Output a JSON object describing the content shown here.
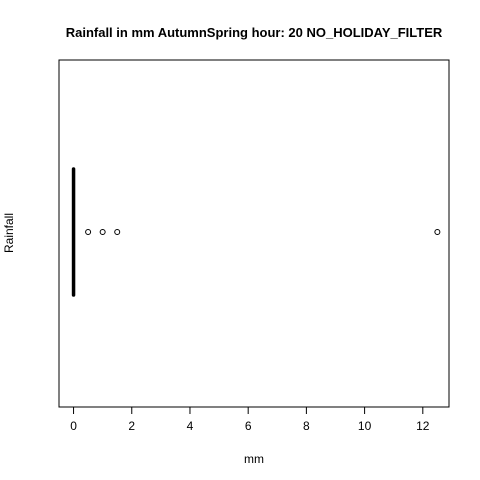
{
  "chart_data": {
    "type": "boxplot",
    "orientation": "horizontal",
    "title": "Rainfall in mm AutumnSpring hour: 20 NO_HOLIDAY_FILTER",
    "xlabel": "mm",
    "ylabel": "Rainfall",
    "xlim": [
      -0.5,
      12.9
    ],
    "x_ticks": [
      0,
      2,
      4,
      6,
      8,
      10,
      12
    ],
    "box": {
      "min": 0,
      "q1": 0,
      "median": 0,
      "q3": 0,
      "max": 0
    },
    "outliers": [
      0.5,
      1.0,
      1.5,
      12.5
    ],
    "colors": {
      "line": "#000000",
      "background": "#ffffff"
    }
  }
}
